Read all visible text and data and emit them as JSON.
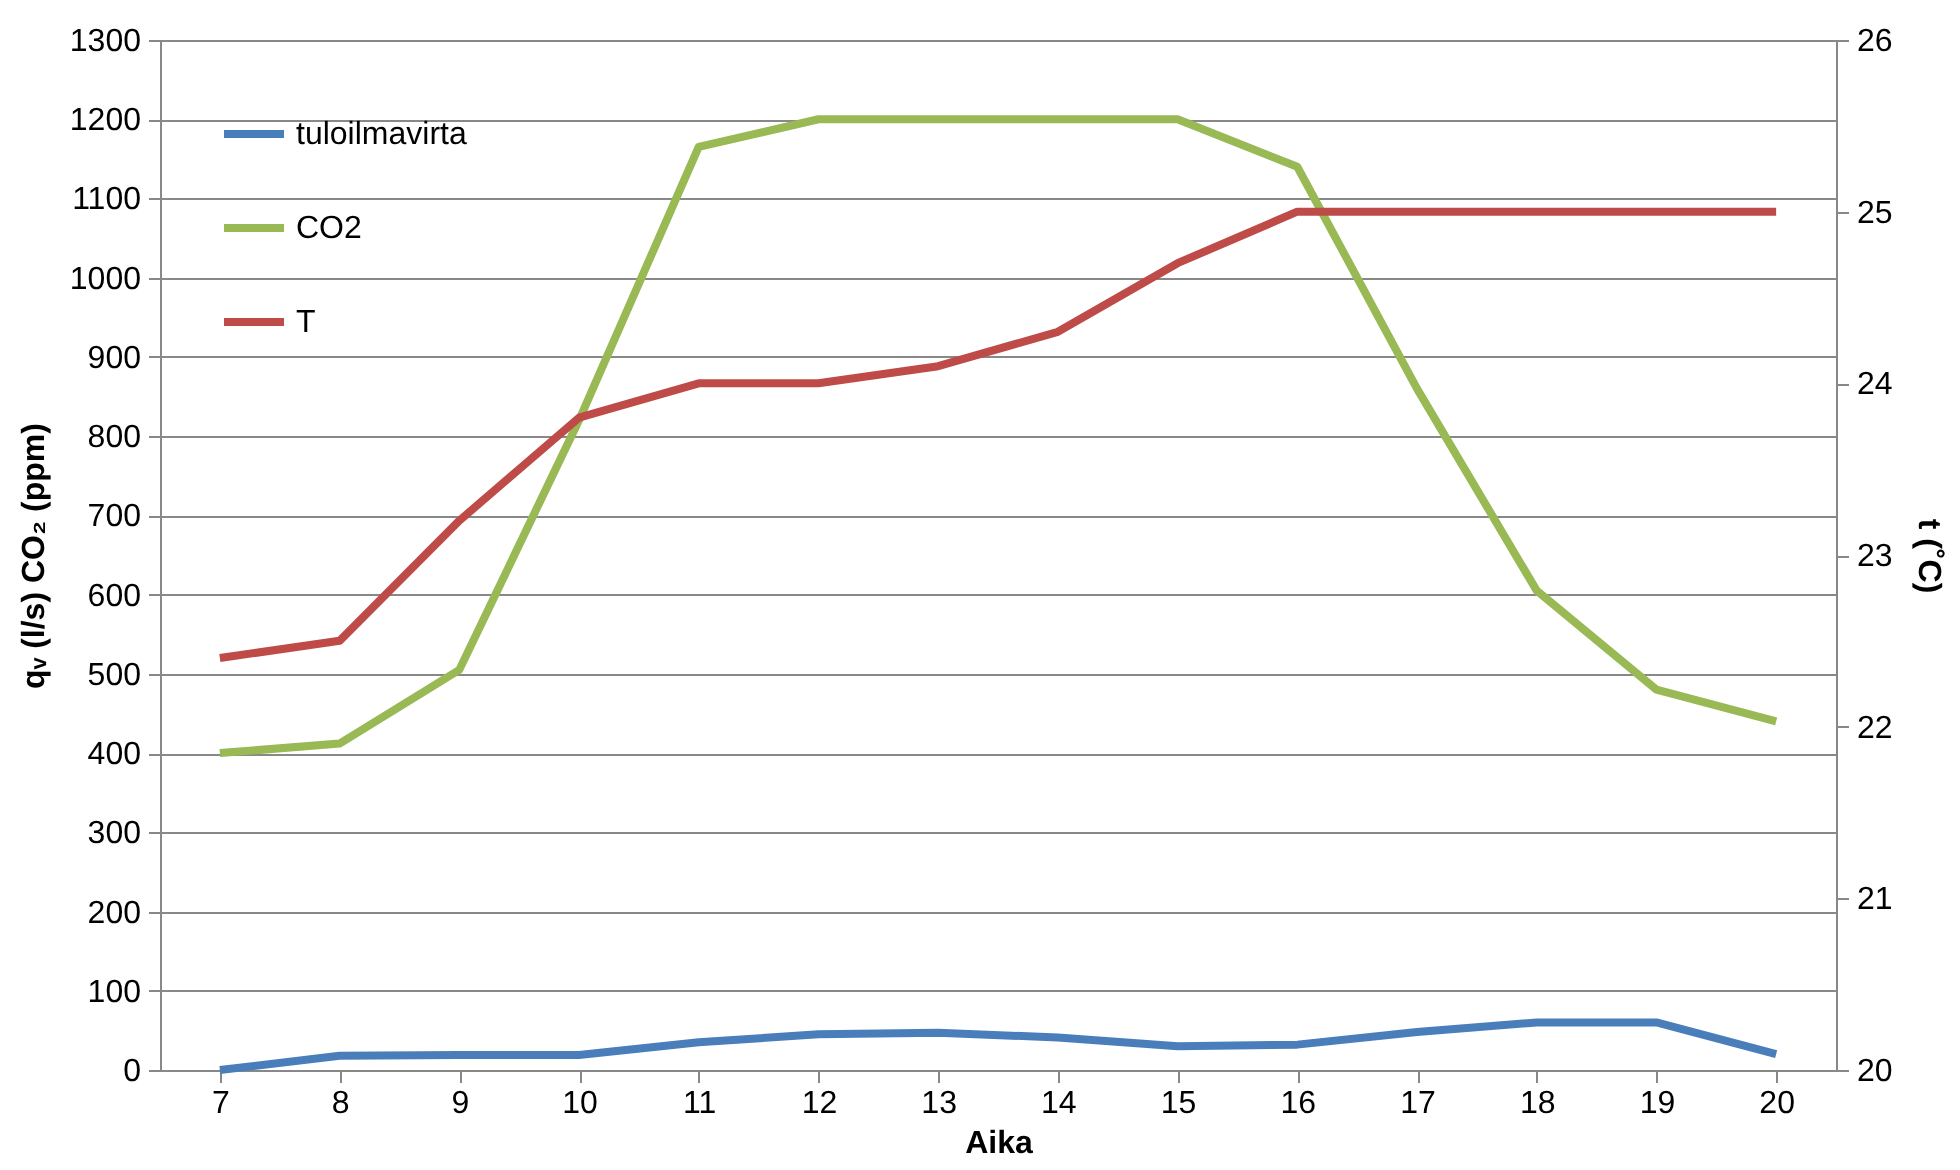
{
  "chart_data": {
    "type": "line",
    "categories": [
      "7",
      "8",
      "9",
      "10",
      "11",
      "12",
      "13",
      "14",
      "15",
      "16",
      "17",
      "18",
      "19",
      "20"
    ],
    "xlabel": "Aika",
    "ylabel": "qᵥ (l/s)     CO₂ (ppm)",
    "y2label": "t (˚C)",
    "ylim": [
      0,
      1300
    ],
    "yticks": [
      0,
      100,
      200,
      300,
      400,
      500,
      600,
      700,
      800,
      900,
      1000,
      1100,
      1200,
      1300
    ],
    "y2lim": [
      20,
      26
    ],
    "y2ticks": [
      20,
      21,
      22,
      23,
      24,
      25,
      26
    ],
    "grid": "y",
    "legend": "top left",
    "line_style": "solid",
    "series": [
      {
        "name": "tuloilmavirta",
        "color": "#4a7ebb",
        "values": [
          0,
          18,
          19,
          19,
          35,
          45,
          47,
          41,
          30,
          32,
          48,
          60,
          60,
          20
        ]
      },
      {
        "name": "CO2",
        "color": "#98b954",
        "values": [
          400,
          412,
          505,
          820,
          1165,
          1200,
          1200,
          1200,
          1200,
          1140,
          860,
          605,
          480,
          440
        ]
      },
      {
        "name": "T",
        "color": "#be4b48",
        "axis": "y2",
        "values": [
          22.4,
          22.5,
          23.2,
          23.8,
          24.0,
          24.0,
          24.1,
          24.3,
          24.7,
          25.0,
          25.0,
          25.0,
          25.0,
          25.0
        ]
      }
    ]
  }
}
